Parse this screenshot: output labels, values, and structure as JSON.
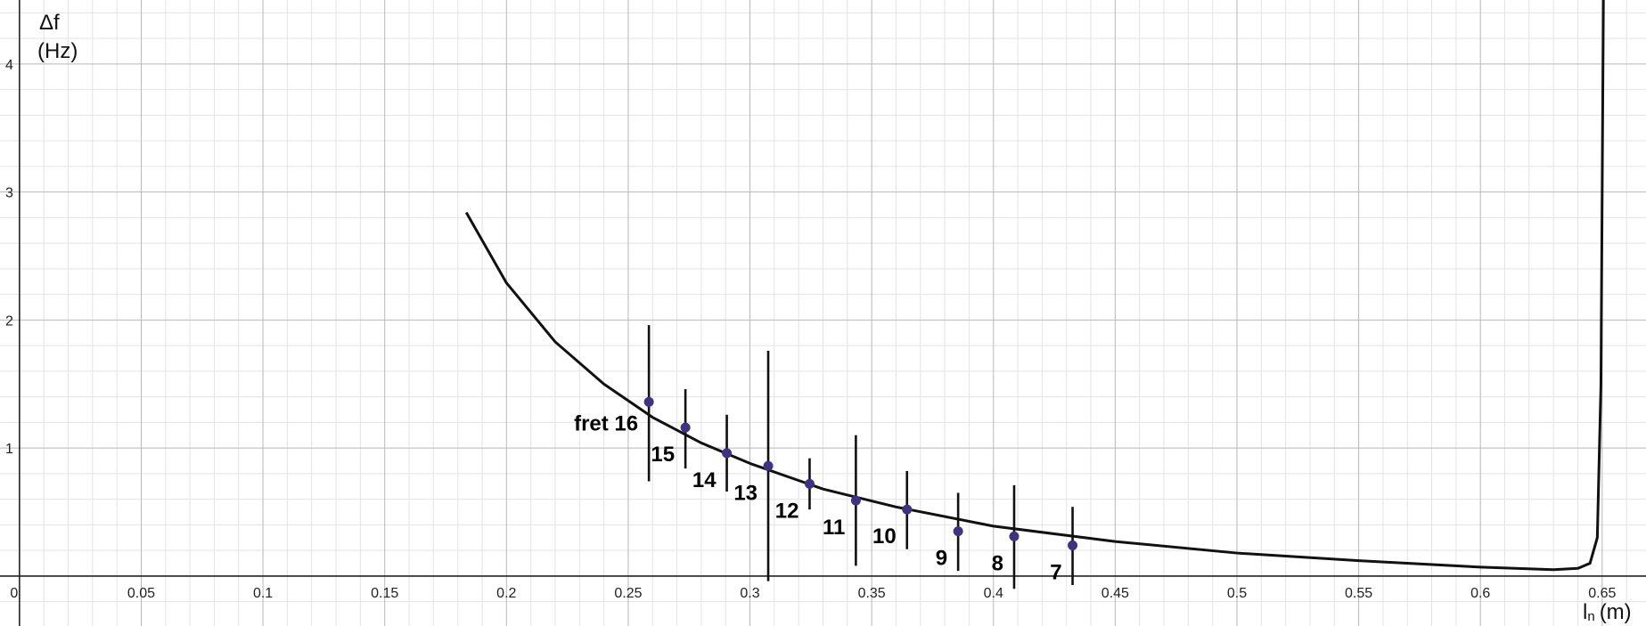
{
  "chart_data": {
    "type": "scatter",
    "ylabel": "Δf",
    "ylabel_unit": "(Hz)",
    "xlabel_main": "l",
    "xlabel_sub": "n",
    "xlabel_unit": "(m)",
    "xlim": [
      -0.008,
      0.668
    ],
    "ylim": [
      -0.39,
      4.5
    ],
    "grid": true,
    "x_tick_labels": [
      "0",
      "0.05",
      "0.1",
      "0.15",
      "0.2",
      "0.25",
      "0.3",
      "0.35",
      "0.4",
      "0.45",
      "0.5",
      "0.55",
      "0.6",
      "0.65"
    ],
    "y_tick_labels": [
      "1",
      "2",
      "3",
      "4"
    ],
    "series": [
      {
        "x": [
          0.2585,
          0.2735,
          0.2905,
          0.3075,
          0.3245,
          0.3435,
          0.3645,
          0.3855,
          0.4085,
          0.4325
        ],
        "y": [
          1.36,
          1.16,
          0.96,
          0.86,
          0.72,
          0.59,
          0.52,
          0.35,
          0.31,
          0.24
        ],
        "err_low": [
          0.74,
          0.84,
          0.66,
          -0.04,
          0.52,
          0.08,
          0.21,
          0.04,
          -0.1,
          -0.07
        ],
        "err_high": [
          1.96,
          1.46,
          1.26,
          1.76,
          0.92,
          1.1,
          0.82,
          0.65,
          0.71,
          0.54
        ],
        "labels": [
          "fret 16",
          "15",
          "14",
          "13",
          "12",
          "11",
          "10",
          "9",
          "8",
          "7"
        ],
        "color": "#3d3380"
      }
    ],
    "curve": {
      "x": [
        0.1835,
        0.2,
        0.22,
        0.24,
        0.26,
        0.28,
        0.3,
        0.33,
        0.36,
        0.4,
        0.45,
        0.5,
        0.55,
        0.6,
        0.63,
        0.64,
        0.645,
        0.648,
        0.6495,
        0.6505
      ],
      "y": [
        2.84,
        2.29,
        1.83,
        1.5,
        1.24,
        1.04,
        0.88,
        0.68,
        0.54,
        0.39,
        0.27,
        0.18,
        0.12,
        0.07,
        0.05,
        0.06,
        0.1,
        0.3,
        1.5,
        4.5
      ],
      "color": "#111111"
    }
  }
}
